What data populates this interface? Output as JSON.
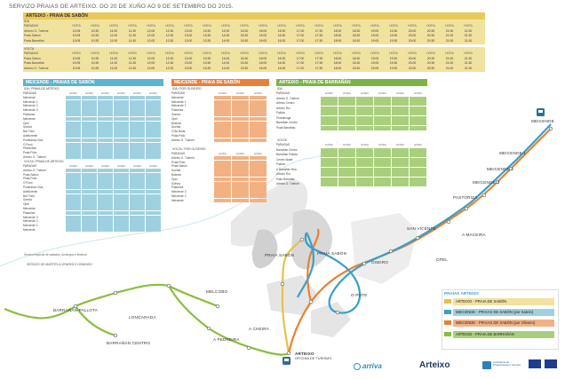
{
  "title": "SERVIZO PRAIAS DE ARTEIXO. DO 20 DE XUÑO AO 9 DE SETEMBRO DO 2015.",
  "colors": {
    "yellow": "#f2e2a0",
    "yellow_head": "#e9c95a",
    "blue": "#9fd0df",
    "blue_head": "#5bb3cd",
    "orange": "#f2b183",
    "orange_head": "#e87f3a",
    "green": "#a9cf7d",
    "green_head": "#7bb347",
    "route_blue": "#3a9fc9",
    "route_orange": "#e8822e",
    "route_green": "#8bbd3c",
    "route_yellow": "#e9c04a"
  },
  "top": {
    "header": "ARTEIXO - PRAIA DE SABÓN",
    "ida_label": "IDA",
    "volta_label": "VOLTA",
    "rows_ida": [
      "PARADAS",
      "Arteixo O. Tuterne",
      "Praia Sabón",
      "Praia Barrañán"
    ],
    "rows_volta": [
      "PARADAS",
      "Praia Sabón",
      "Praia Barrañán",
      "Arteixo O. Tuterne"
    ],
    "col_header": "HORA",
    "times": [
      "10:05",
      "10:30",
      "11:00",
      "11:30",
      "12:00",
      "12:30",
      "13:00",
      "13:30",
      "14:00",
      "15:30",
      "16:00",
      "16:30",
      "17:00",
      "17:30",
      "18:00",
      "18:30",
      "19:00",
      "19:30",
      "20:00",
      "20:30",
      "21:00",
      "21:30"
    ]
  },
  "meicende": {
    "header": "MEICENDE - PRAIAS DE SABÓN",
    "ida_label": "IDA / PRAIA DE ARTEIXO",
    "volta_label": "VOLTA / PRAIA DE ARTEIXO",
    "stops_ida": [
      "PARADAS",
      "Meicende",
      "Meicende 1",
      "Meicende 2",
      "Meicende 3",
      "Pastoriza",
      "Meicende",
      "Opel",
      "Suevia",
      "Bar Trelo",
      "Adellorente",
      "Pontedeza Viva",
      "O Pozo",
      "Pedra Alta",
      "Praia Pollo",
      "Arteixo O. Tuterne"
    ],
    "stops_volta": [
      "PARADAS",
      "Arteixo O. Tuterne",
      "Praia Sabón",
      "Praia Pollo",
      "O Pozo",
      "Pontedeza Viva",
      "Adellorente",
      "Bar Trelo",
      "Suevia",
      "Opel",
      "Meicende",
      "Pastoriza",
      "Meicende 3",
      "Meicende 2",
      "Meicende 1",
      "Meicende"
    ],
    "note": "Servizo especial de sábados, domingos e festivos",
    "footer": "SERVIZO DE MARTES A VENRES E DOMINGO"
  },
  "meicende2": {
    "header": "MEICENDE - PRAIA DE SABÓN",
    "ida_label": "IDA / POR OLIVEIRO",
    "volta_label": "VOLTA / POR OLIVEIRO",
    "stops_ida": [
      "PARADAS",
      "Meicende",
      "Meicende 1",
      "Meicende 2",
      "Pastoriza",
      "Suevia",
      "Opel",
      "Bolimar",
      "Dueñal",
      "O Bo Bolar",
      "Praia Pollo",
      "Arteixo O. Tuterne"
    ],
    "stops_volta": [
      "PARADAS",
      "Arteixo O. Tuterne",
      "Praia Pollo",
      "Praia Sabón",
      "Dueñal",
      "Bolimar",
      "Opel",
      "Suevia",
      "Pastoriza",
      "Meicende 3",
      "Meicende 2",
      "Meicende"
    ]
  },
  "barranan": {
    "header": "ARTEIXO - PRAIA DE BARRAÑÁN",
    "ida_label": "IDA",
    "volta_label": "VOLTA",
    "stops_ida": [
      "PARADAS",
      "Arteixo O. Tuterne",
      "Arteixo Centro",
      "Arteixo Río",
      "Pallota",
      "Pedralonga",
      "Barrañán Centro",
      "Praia Barrañán"
    ],
    "stops_volta": [
      "PARADAS",
      "Barrañán Centro",
      "Barrañán Pallota",
      "Centro Idade",
      "Pallota",
      "A Barrañán Rúa",
      "Arteixo Río",
      "Pallo Barrañán",
      "Arteixo O. Tuterne"
    ]
  },
  "legend": {
    "title": "PRAIAS ARTEIXO",
    "items": [
      "ARTEIXO - PRAIA DE SABÓN",
      "MEICENDE - PRAIAS DE SABÓN (por Sabón)",
      "MEICENDE - PRAIAS DE SABÓN (por Oliveiro)",
      "ARTEIXO - PRAIA DE BARRAÑÁN"
    ]
  },
  "map_labels": {
    "meicende": "MEICENDE",
    "meicende1": "MEICENDE 1",
    "meicende2": "MEICENDE 2",
    "meicende3": "MEICENDE 3",
    "pastoriza": "PASTORIZA",
    "san_vicente": "SAN VICENTE",
    "a_maceira": "A MACEIRA",
    "opel": "OPEL",
    "oseiro": "OSEIRO",
    "o_pote": "O POTE",
    "praia_sabon": "PRAIA SABÓN",
    "praia_barranan": "PRAIA SABÓN",
    "melcobo": "MELCOBO",
    "barranan_pallota": "BARRAÑÁN PALLOTA",
    "longarada": "LONGARADA",
    "barranan_centro": "BARRAÑÁN CENTRO",
    "a_pedreira": "A PEDREIRA",
    "a_cheira": "A CHEIRA",
    "arteixo": "ARTEIXO",
    "arteixo_sub": "OFICINA DE TURISMO"
  },
  "logos": {
    "arriva": "arriva",
    "arteixo": "Arteixo",
    "transporte": "Consellería de infraestruturas e vivenda"
  }
}
